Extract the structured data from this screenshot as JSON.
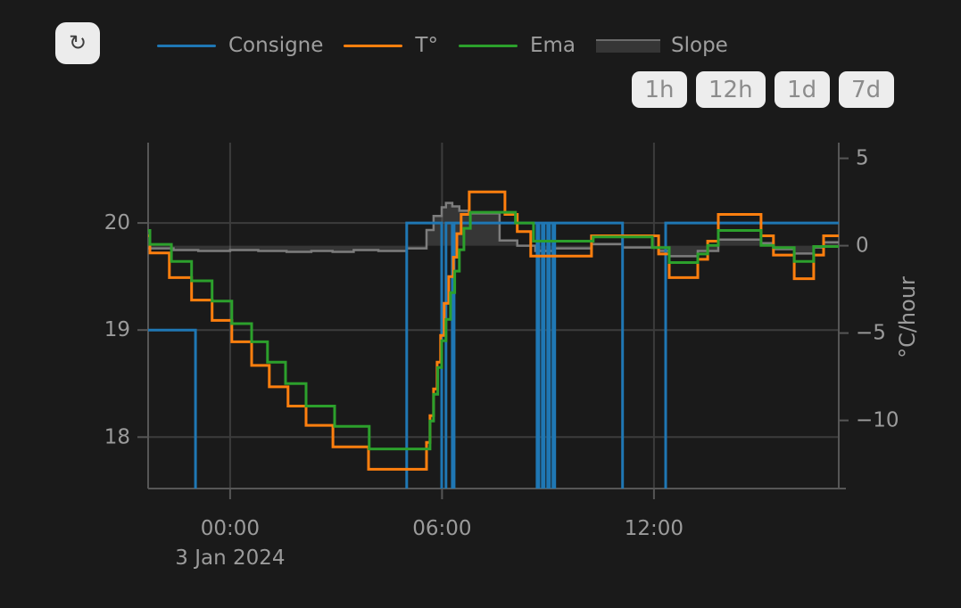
{
  "toolbar": {
    "refresh_icon": "↻",
    "range_buttons": [
      {
        "label": "1h"
      },
      {
        "label": "12h"
      },
      {
        "label": "1d"
      },
      {
        "label": "7d"
      }
    ]
  },
  "legend": {
    "items": [
      {
        "label": "Consigne",
        "color": "#1f77b4",
        "type": "line"
      },
      {
        "label": "T°",
        "color": "#ff7f0e",
        "type": "line"
      },
      {
        "label": "Ema",
        "color": "#2ca02c",
        "type": "line"
      },
      {
        "label": "Slope",
        "color": "#7d7d7d",
        "type": "area"
      }
    ]
  },
  "colors": {
    "background": "#1a1a1a",
    "gridline": "#3c3c3c",
    "axis_line": "#565656",
    "tick_text": "#9b9b9b",
    "slope_fill": "rgba(130,130,130,0.28)"
  },
  "chart_data": {
    "type": "line",
    "x_axis": {
      "unit": "hours_from_midnight_3_jan_2024",
      "range": [
        -2.32,
        17.23
      ],
      "ticks": [
        {
          "value": 0,
          "label": "00:00",
          "sub_label": "3 Jan 2024"
        },
        {
          "value": 6,
          "label": "06:00"
        },
        {
          "value": 12,
          "label": "12:00"
        }
      ]
    },
    "y_axis_left": {
      "range": [
        17.52,
        20.75
      ],
      "ticks": [
        {
          "value": 18,
          "label": "18"
        },
        {
          "value": 19,
          "label": "19"
        },
        {
          "value": 20,
          "label": "20"
        }
      ]
    },
    "y_axis_right": {
      "label": "°C/hour",
      "range": [
        -13.9,
        5.9
      ],
      "ticks": [
        {
          "value": 5,
          "label": "5"
        },
        {
          "value": 0,
          "label": "0"
        },
        {
          "value": -5,
          "label": "−5"
        },
        {
          "value": -10,
          "label": "−10"
        }
      ]
    },
    "series": [
      {
        "name": "Slope",
        "axis": "right",
        "style": "area",
        "step": true,
        "color": "#7d7d7d",
        "width": 2.5,
        "points": [
          [
            -2.32,
            -0.15
          ],
          [
            -1.6,
            -0.25
          ],
          [
            -0.9,
            -0.3
          ],
          [
            0.0,
            -0.25
          ],
          [
            0.8,
            -0.3
          ],
          [
            1.6,
            -0.35
          ],
          [
            2.3,
            -0.3
          ],
          [
            2.9,
            -0.35
          ],
          [
            3.5,
            -0.25
          ],
          [
            4.2,
            -0.3
          ],
          [
            5.0,
            -0.15
          ],
          [
            5.56,
            0.9
          ],
          [
            5.76,
            1.7
          ],
          [
            5.99,
            2.2
          ],
          [
            6.11,
            2.45
          ],
          [
            6.29,
            2.25
          ],
          [
            6.49,
            2.0
          ],
          [
            6.77,
            1.85
          ],
          [
            7.63,
            0.3
          ],
          [
            8.13,
            0.0
          ],
          [
            8.64,
            -0.3
          ],
          [
            9.17,
            -0.15
          ],
          [
            10.23,
            0.1
          ],
          [
            11.11,
            -0.1
          ],
          [
            12.13,
            -0.3
          ],
          [
            12.43,
            -0.6
          ],
          [
            13.24,
            -0.3
          ],
          [
            13.82,
            0.35
          ],
          [
            15.03,
            0.15
          ],
          [
            15.38,
            -0.2
          ],
          [
            15.97,
            -0.45
          ],
          [
            16.52,
            -0.1
          ],
          [
            16.8,
            0.2
          ]
        ]
      },
      {
        "name": "Consigne",
        "axis": "left",
        "style": "line",
        "step": true,
        "color": "#1f77b4",
        "width": 3,
        "points": [
          [
            -2.32,
            19.0
          ],
          [
            -0.98,
            17.3
          ],
          [
            5.0,
            20.0
          ],
          [
            5.99,
            17.3
          ],
          [
            6.11,
            20.0
          ],
          [
            6.29,
            17.3
          ],
          [
            6.34,
            20.0
          ],
          [
            8.69,
            17.3
          ],
          [
            8.74,
            20.0
          ],
          [
            8.84,
            17.3
          ],
          [
            8.89,
            20.0
          ],
          [
            8.99,
            17.3
          ],
          [
            9.04,
            20.0
          ],
          [
            9.14,
            17.3
          ],
          [
            9.19,
            20.0
          ],
          [
            11.11,
            17.3
          ],
          [
            12.33,
            20.0
          ]
        ]
      },
      {
        "name": "T°",
        "axis": "left",
        "style": "line",
        "step": true,
        "color": "#ff7f0e",
        "width": 3,
        "points": [
          [
            -2.32,
            19.88
          ],
          [
            -2.27,
            19.72
          ],
          [
            -1.72,
            19.49
          ],
          [
            -1.09,
            19.28
          ],
          [
            -0.51,
            19.09
          ],
          [
            0.05,
            18.89
          ],
          [
            0.61,
            18.67
          ],
          [
            1.11,
            18.47
          ],
          [
            1.64,
            18.29
          ],
          [
            2.15,
            18.11
          ],
          [
            2.91,
            17.91
          ],
          [
            3.92,
            17.7
          ],
          [
            5.56,
            17.95
          ],
          [
            5.66,
            18.2
          ],
          [
            5.76,
            18.45
          ],
          [
            5.86,
            18.7
          ],
          [
            5.96,
            18.95
          ],
          [
            6.06,
            19.25
          ],
          [
            6.19,
            19.5
          ],
          [
            6.32,
            19.68
          ],
          [
            6.42,
            19.9
          ],
          [
            6.54,
            20.08
          ],
          [
            6.77,
            20.29
          ],
          [
            7.78,
            20.08
          ],
          [
            8.13,
            19.92
          ],
          [
            8.51,
            19.69
          ],
          [
            10.23,
            19.88
          ],
          [
            12.13,
            19.71
          ],
          [
            12.43,
            19.49
          ],
          [
            13.24,
            19.66
          ],
          [
            13.52,
            19.83
          ],
          [
            13.82,
            20.08
          ],
          [
            15.03,
            19.88
          ],
          [
            15.38,
            19.7
          ],
          [
            15.97,
            19.48
          ],
          [
            16.52,
            19.7
          ],
          [
            16.8,
            19.88
          ]
        ]
      },
      {
        "name": "Ema",
        "axis": "left",
        "style": "line",
        "step": true,
        "color": "#2ca02c",
        "width": 3,
        "points": [
          [
            -2.32,
            19.93
          ],
          [
            -2.27,
            19.8
          ],
          [
            -1.66,
            19.64
          ],
          [
            -1.09,
            19.46
          ],
          [
            -0.51,
            19.27
          ],
          [
            0.05,
            19.06
          ],
          [
            0.61,
            18.89
          ],
          [
            1.06,
            18.7
          ],
          [
            1.57,
            18.5
          ],
          [
            2.15,
            18.29
          ],
          [
            2.96,
            18.1
          ],
          [
            3.94,
            17.89
          ],
          [
            5.66,
            18.15
          ],
          [
            5.76,
            18.4
          ],
          [
            5.88,
            18.65
          ],
          [
            5.99,
            18.9
          ],
          [
            6.11,
            19.1
          ],
          [
            6.24,
            19.35
          ],
          [
            6.36,
            19.55
          ],
          [
            6.49,
            19.75
          ],
          [
            6.62,
            19.95
          ],
          [
            6.8,
            20.1
          ],
          [
            8.08,
            20.0
          ],
          [
            8.59,
            19.83
          ],
          [
            10.28,
            19.87
          ],
          [
            11.95,
            19.77
          ],
          [
            12.43,
            19.63
          ],
          [
            13.24,
            19.71
          ],
          [
            13.52,
            19.79
          ],
          [
            13.82,
            19.93
          ],
          [
            15.03,
            19.79
          ],
          [
            15.38,
            19.77
          ],
          [
            15.97,
            19.64
          ],
          [
            16.52,
            19.78
          ]
        ]
      }
    ]
  }
}
